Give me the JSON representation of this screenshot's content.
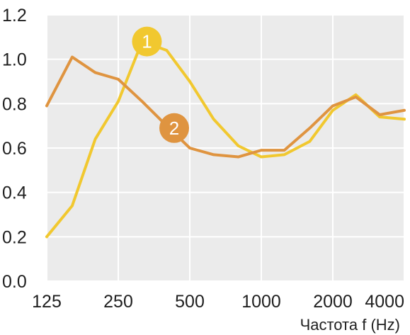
{
  "chart_data": {
    "type": "line",
    "xlabel": "Частота f (Hz)",
    "ylabel": "",
    "title": "",
    "x": [
      125,
      160,
      200,
      250,
      315,
      400,
      500,
      630,
      800,
      1000,
      1250,
      1600,
      2000,
      2500,
      3150,
      4000
    ],
    "x_tick_labels": [
      "125",
      "250",
      "500",
      "1000",
      "2000",
      "4000"
    ],
    "y_tick_labels": [
      "0.0",
      "0.2",
      "0.4",
      "0.6",
      "0.8",
      "1.0",
      "1.2"
    ],
    "ylim": [
      0,
      1.2
    ],
    "xscale": "log",
    "grid": true,
    "background": "#ebebeb",
    "series": [
      {
        "name": "1",
        "color": "#f1c82f",
        "values": [
          0.2,
          0.34,
          0.64,
          0.81,
          1.08,
          1.04,
          0.9,
          0.73,
          0.61,
          0.56,
          0.57,
          0.63,
          0.77,
          0.84,
          0.74,
          0.73
        ]
      },
      {
        "name": "2",
        "color": "#df9440",
        "values": [
          0.79,
          1.01,
          0.94,
          0.91,
          0.81,
          0.7,
          0.6,
          0.57,
          0.56,
          0.59,
          0.59,
          0.69,
          0.79,
          0.83,
          0.75,
          0.77
        ]
      }
    ],
    "markers": [
      {
        "label": "1",
        "series": 0,
        "x": 330,
        "y": 1.08
      },
      {
        "label": "2",
        "series": 1,
        "x": 430,
        "y": 0.69
      }
    ]
  }
}
